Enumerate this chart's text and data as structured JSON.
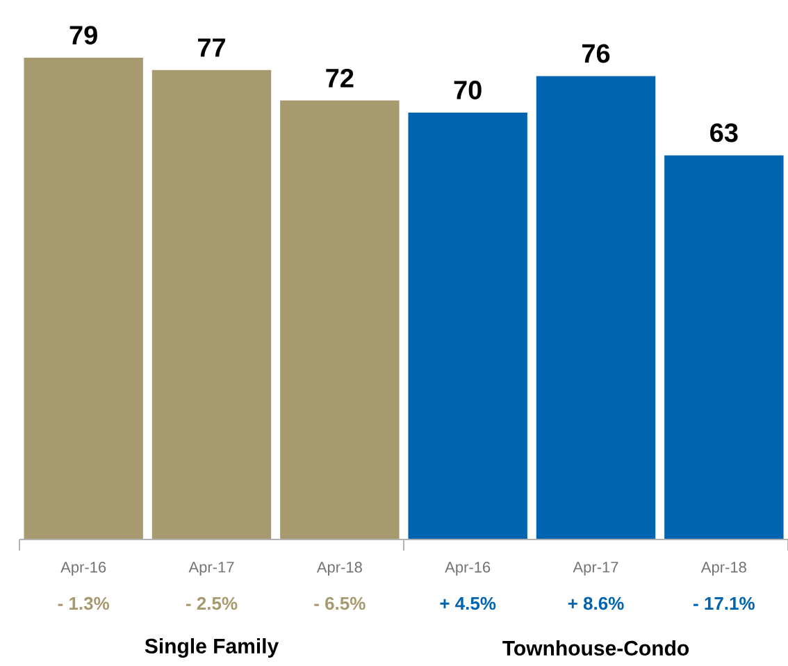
{
  "chart_data": {
    "type": "bar",
    "categories": [
      "Apr-16",
      "Apr-17",
      "Apr-18",
      "Apr-16",
      "Apr-17",
      "Apr-18"
    ],
    "values": [
      79,
      77,
      72,
      70,
      76,
      63
    ],
    "colors": [
      "#a89a6f",
      "#a89a6f",
      "#a89a6f",
      "#0064b0",
      "#0064b0",
      "#0064b0"
    ],
    "data_labels": true,
    "annotations": [
      "- 1.3%",
      "- 2.5%",
      "- 6.5%",
      "+ 4.5%",
      "+ 8.6%",
      "- 17.1%",
      "Single Family",
      "Townhouse-Condo"
    ]
  }
}
